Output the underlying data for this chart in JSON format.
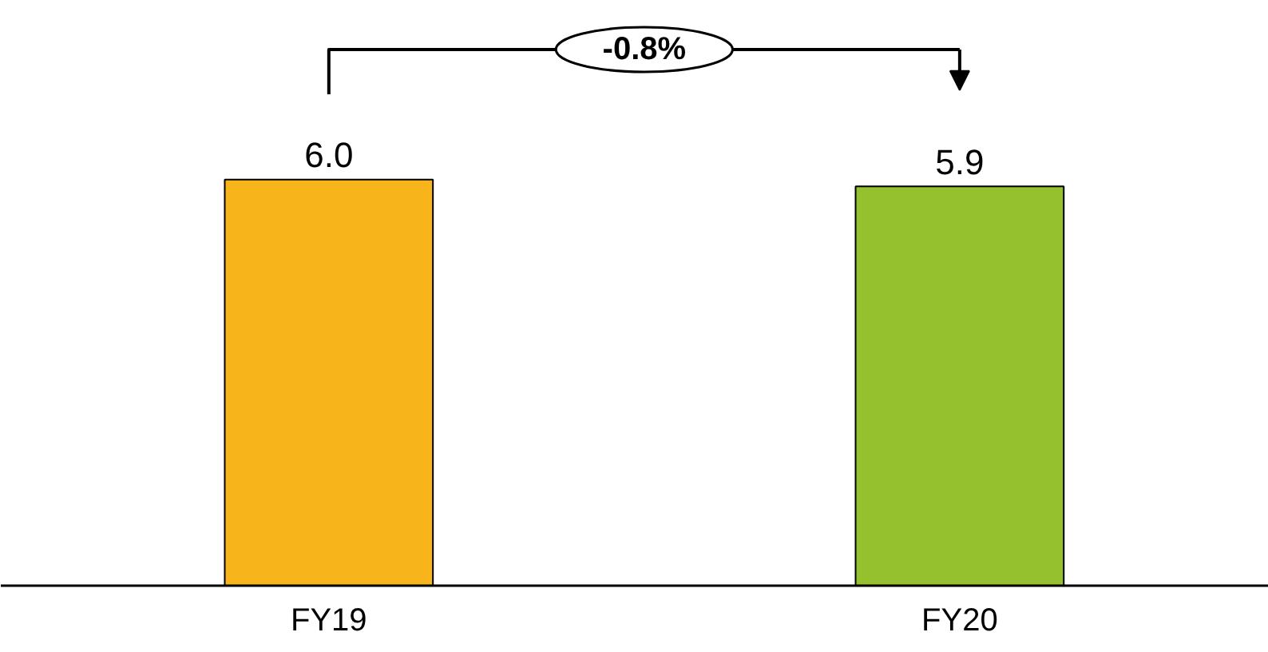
{
  "chart_data": {
    "type": "bar",
    "categories": [
      "FY19",
      "FY20"
    ],
    "values": [
      6.0,
      5.9
    ],
    "colors": [
      "#f7b51b",
      "#96c12e"
    ],
    "value_labels": [
      "6.0",
      "5.9"
    ],
    "annotations": [
      "-0.8%"
    ]
  }
}
